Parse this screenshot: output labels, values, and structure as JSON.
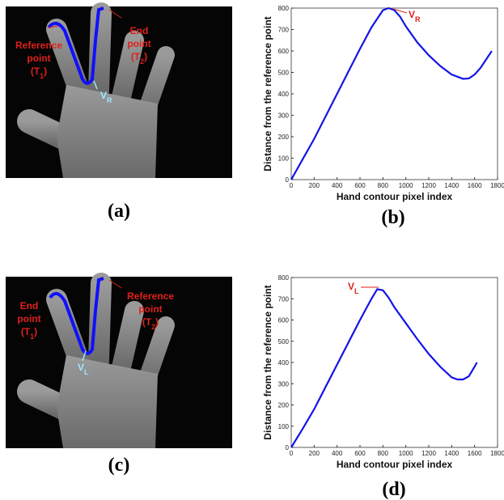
{
  "panels": [
    {
      "label": "(a)",
      "annotations": [
        {
          "lines": [
            "Reference",
            "point"
          ],
          "open": "(T",
          "sub": "1",
          "close": ")"
        },
        {
          "lines": [
            "End",
            "point"
          ],
          "open": "(T",
          "sub": "2",
          "close": ")"
        }
      ],
      "valley": {
        "text": "V",
        "sub": "R"
      }
    },
    {
      "label": "(c)",
      "annotations": [
        {
          "lines": [
            "End",
            "point"
          ],
          "open": "(T",
          "sub": "1",
          "close": ")"
        },
        {
          "lines": [
            "Reference",
            "point"
          ],
          "open": "(T",
          "sub": "2",
          "close": ")"
        }
      ],
      "valley": {
        "text": "V",
        "sub": "L"
      }
    }
  ],
  "chart_data": [
    {
      "type": "line",
      "label": "(b)",
      "x_label": "Hand contour pixel index",
      "y_label": "Distance from the reference point",
      "x": [
        0,
        100,
        200,
        300,
        400,
        500,
        600,
        700,
        800,
        850,
        900,
        950,
        1000,
        1100,
        1200,
        1300,
        1400,
        1500,
        1550,
        1600,
        1650,
        1700,
        1750
      ],
      "values": [
        0,
        95,
        190,
        295,
        400,
        505,
        610,
        710,
        790,
        800,
        790,
        760,
        715,
        640,
        580,
        530,
        490,
        470,
        472,
        490,
        520,
        560,
        600
      ],
      "color": "#1414e6",
      "xlim": [
        0,
        1800
      ],
      "ylim": [
        0,
        800
      ],
      "xticks": [
        0,
        200,
        400,
        600,
        800,
        1000,
        1200,
        1400,
        1600,
        1800
      ],
      "yticks": [
        0,
        100,
        200,
        300,
        400,
        500,
        600,
        700,
        800
      ],
      "annotation": {
        "text": "V",
        "sub": "R"
      }
    },
    {
      "type": "line",
      "label": "(d)",
      "x_label": "Hand contour pixel index",
      "y_label": "Distance from the reference point",
      "x": [
        0,
        100,
        200,
        300,
        400,
        500,
        600,
        700,
        750,
        800,
        850,
        900,
        1000,
        1100,
        1200,
        1300,
        1400,
        1450,
        1500,
        1550,
        1600,
        1620
      ],
      "values": [
        0,
        88,
        180,
        285,
        390,
        495,
        600,
        700,
        745,
        740,
        705,
        660,
        585,
        510,
        440,
        380,
        330,
        320,
        320,
        335,
        380,
        400
      ],
      "color": "#1414e6",
      "xlim": [
        0,
        1800
      ],
      "ylim": [
        0,
        800
      ],
      "xticks": [
        0,
        200,
        400,
        600,
        800,
        1000,
        1200,
        1400,
        1600,
        1800
      ],
      "yticks": [
        0,
        100,
        200,
        300,
        400,
        500,
        600,
        700,
        800
      ],
      "annotation": {
        "text": "V",
        "sub": "L"
      }
    }
  ]
}
